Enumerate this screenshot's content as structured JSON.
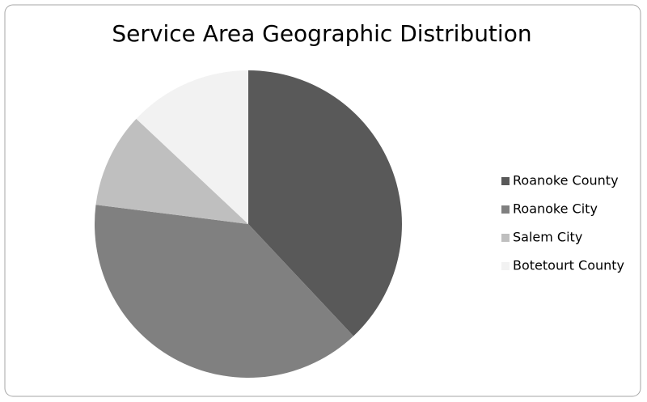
{
  "chart_data": {
    "type": "pie",
    "title": "Service Area Geographic Distribution",
    "categories": [
      "Roanoke County",
      "Roanoke City",
      "Salem City",
      "Botetourt County"
    ],
    "values": [
      38,
      39,
      10,
      13
    ],
    "colors": [
      "#595959",
      "#808080",
      "#bfbfbf",
      "#f2f2f2"
    ],
    "legend": "right"
  }
}
